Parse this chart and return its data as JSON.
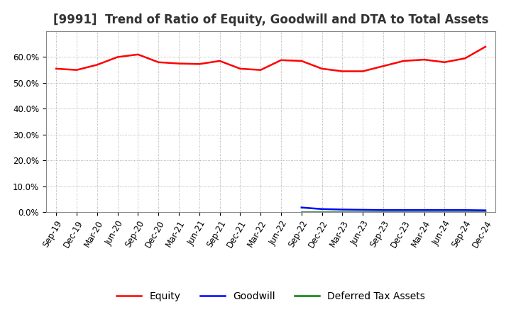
{
  "title": "[9991]  Trend of Ratio of Equity, Goodwill and DTA to Total Assets",
  "x_labels": [
    "Sep-19",
    "Dec-19",
    "Mar-20",
    "Jun-20",
    "Sep-20",
    "Dec-20",
    "Mar-21",
    "Jun-21",
    "Sep-21",
    "Dec-21",
    "Mar-22",
    "Jun-22",
    "Sep-22",
    "Dec-22",
    "Mar-23",
    "Jun-23",
    "Sep-23",
    "Dec-23",
    "Mar-24",
    "Jun-24",
    "Sep-24",
    "Dec-24"
  ],
  "equity": [
    55.5,
    55.0,
    57.0,
    60.0,
    61.0,
    58.0,
    57.5,
    57.3,
    58.5,
    55.5,
    55.0,
    58.8,
    58.5,
    55.5,
    54.5,
    54.5,
    56.5,
    58.5,
    59.0,
    58.0,
    59.5,
    64.0
  ],
  "goodwill": [
    null,
    null,
    null,
    null,
    null,
    null,
    null,
    null,
    null,
    null,
    null,
    null,
    1.8,
    1.2,
    1.0,
    0.9,
    0.8,
    0.8,
    0.8,
    0.8,
    0.8,
    0.7
  ],
  "dta": [
    null,
    null,
    null,
    null,
    null,
    null,
    null,
    null,
    null,
    null,
    null,
    null,
    0.05,
    0.05,
    0.05,
    0.05,
    0.05,
    0.05,
    0.05,
    0.05,
    0.05,
    0.05
  ],
  "equity_color": "#ff0000",
  "goodwill_color": "#0000ff",
  "dta_color": "#008000",
  "ylim": [
    0,
    70
  ],
  "yticks": [
    0,
    10,
    20,
    30,
    40,
    50,
    60
  ],
  "ytick_labels": [
    "0.0%",
    "10.0%",
    "20.0%",
    "30.0%",
    "40.0%",
    "50.0%",
    "60.0%"
  ],
  "bg_color": "#ffffff",
  "grid_color": "#999999",
  "legend_labels": [
    "Equity",
    "Goodwill",
    "Deferred Tax Assets"
  ],
  "title_fontsize": 12,
  "label_fontsize": 8.5,
  "legend_fontsize": 10,
  "line_width": 1.8
}
